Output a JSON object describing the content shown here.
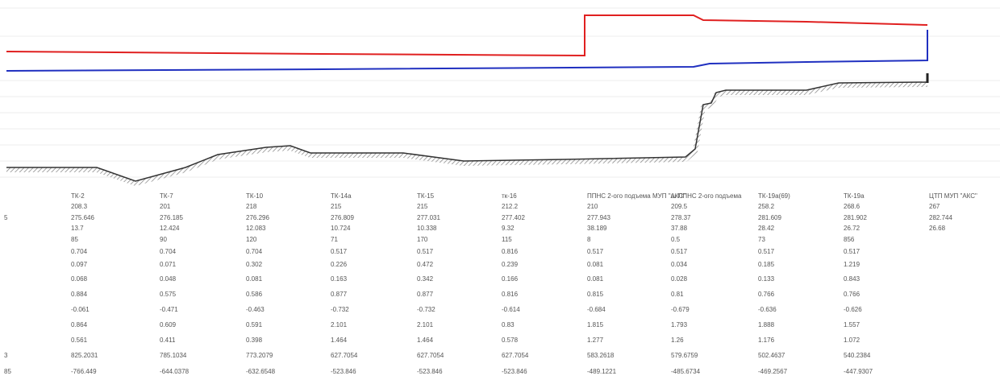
{
  "table": {
    "columns": [
      "ТК-2",
      "ТК-7",
      "ТК-10",
      "ТК-14а",
      "ТК-15",
      "тк-16",
      "ППНС 2-ого подъема МУП \"АКС\"",
      "ш ППНС 2-ого подъема",
      "ТК-19а(69)",
      "ТК-19а",
      "ЦТП МУП \"АКС\""
    ],
    "rows": [
      {
        "cells": [
          "208.3",
          "201",
          "218",
          "215",
          "215",
          "212.2",
          "210",
          "209.5",
          "258.2",
          "268.6",
          "267"
        ]
      },
      {
        "label": "5",
        "cells": [
          "275.646",
          "276.185",
          "276.296",
          "276.809",
          "277.031",
          "277.402",
          "277.943",
          "278.37",
          "281.609",
          "281.902",
          "282.744"
        ]
      },
      {
        "cells": [
          "13.7",
          "12.424",
          "12.083",
          "10.724",
          "10.338",
          "9.32",
          "38.189",
          "37.88",
          "28.42",
          "26.72",
          "26.68"
        ]
      },
      {
        "cells": [
          "85",
          "90",
          "120",
          "71",
          "170",
          "115",
          "8",
          "0.5",
          "73",
          "856"
        ]
      },
      {
        "cells": [
          "0.704",
          "0.704",
          "0.704",
          "0.517",
          "0.517",
          "0.816",
          "0.517",
          "0.517",
          "0.517",
          "0.517"
        ]
      },
      {
        "cells": [
          "0.097",
          "0.071",
          "0.302",
          "0.226",
          "0.472",
          "0.239",
          "0.081",
          "0.034",
          "0.185",
          "1.219"
        ]
      },
      {
        "cells": [
          "0.068",
          "0.048",
          "0.081",
          "0.163",
          "0.342",
          "0.166",
          "0.081",
          "0.028",
          "0.133",
          "0.843"
        ]
      },
      {
        "cells": [
          "0.884",
          "0.575",
          "0.586",
          "0.877",
          "0.877",
          "0.816",
          "0.815",
          "0.81",
          "0.766",
          "0.766"
        ]
      },
      {
        "cells": [
          "-0.061",
          "-0.471",
          "-0.463",
          "-0.732",
          "-0.732",
          "-0.614",
          "-0.684",
          "-0.679",
          "-0.636",
          "-0.626"
        ]
      },
      {
        "cells": [
          "0.864",
          "0.609",
          "0.591",
          "2.101",
          "2.101",
          "0.83",
          "1.815",
          "1.793",
          "1.888",
          "1.557"
        ]
      },
      {
        "cells": [
          "0.561",
          "0.411",
          "0.398",
          "1.464",
          "1.464",
          "0.578",
          "1.277",
          "1.26",
          "1.176",
          "1.072"
        ]
      },
      {
        "label": "3",
        "cells": [
          "825.2031",
          "785.1034",
          "773.2079",
          "627.7054",
          "627.7054",
          "627.7054",
          "583.2618",
          "579.6759",
          "502.4637",
          "540.2384"
        ]
      },
      {
        "label": "85",
        "cells": [
          "-766.449",
          "-644.0378",
          "-632.6548",
          "-523.846",
          "-523.846",
          "-523.846",
          "-489.1221",
          "-485.6734",
          "-469.2567",
          "-447.9307"
        ]
      }
    ]
  }
}
